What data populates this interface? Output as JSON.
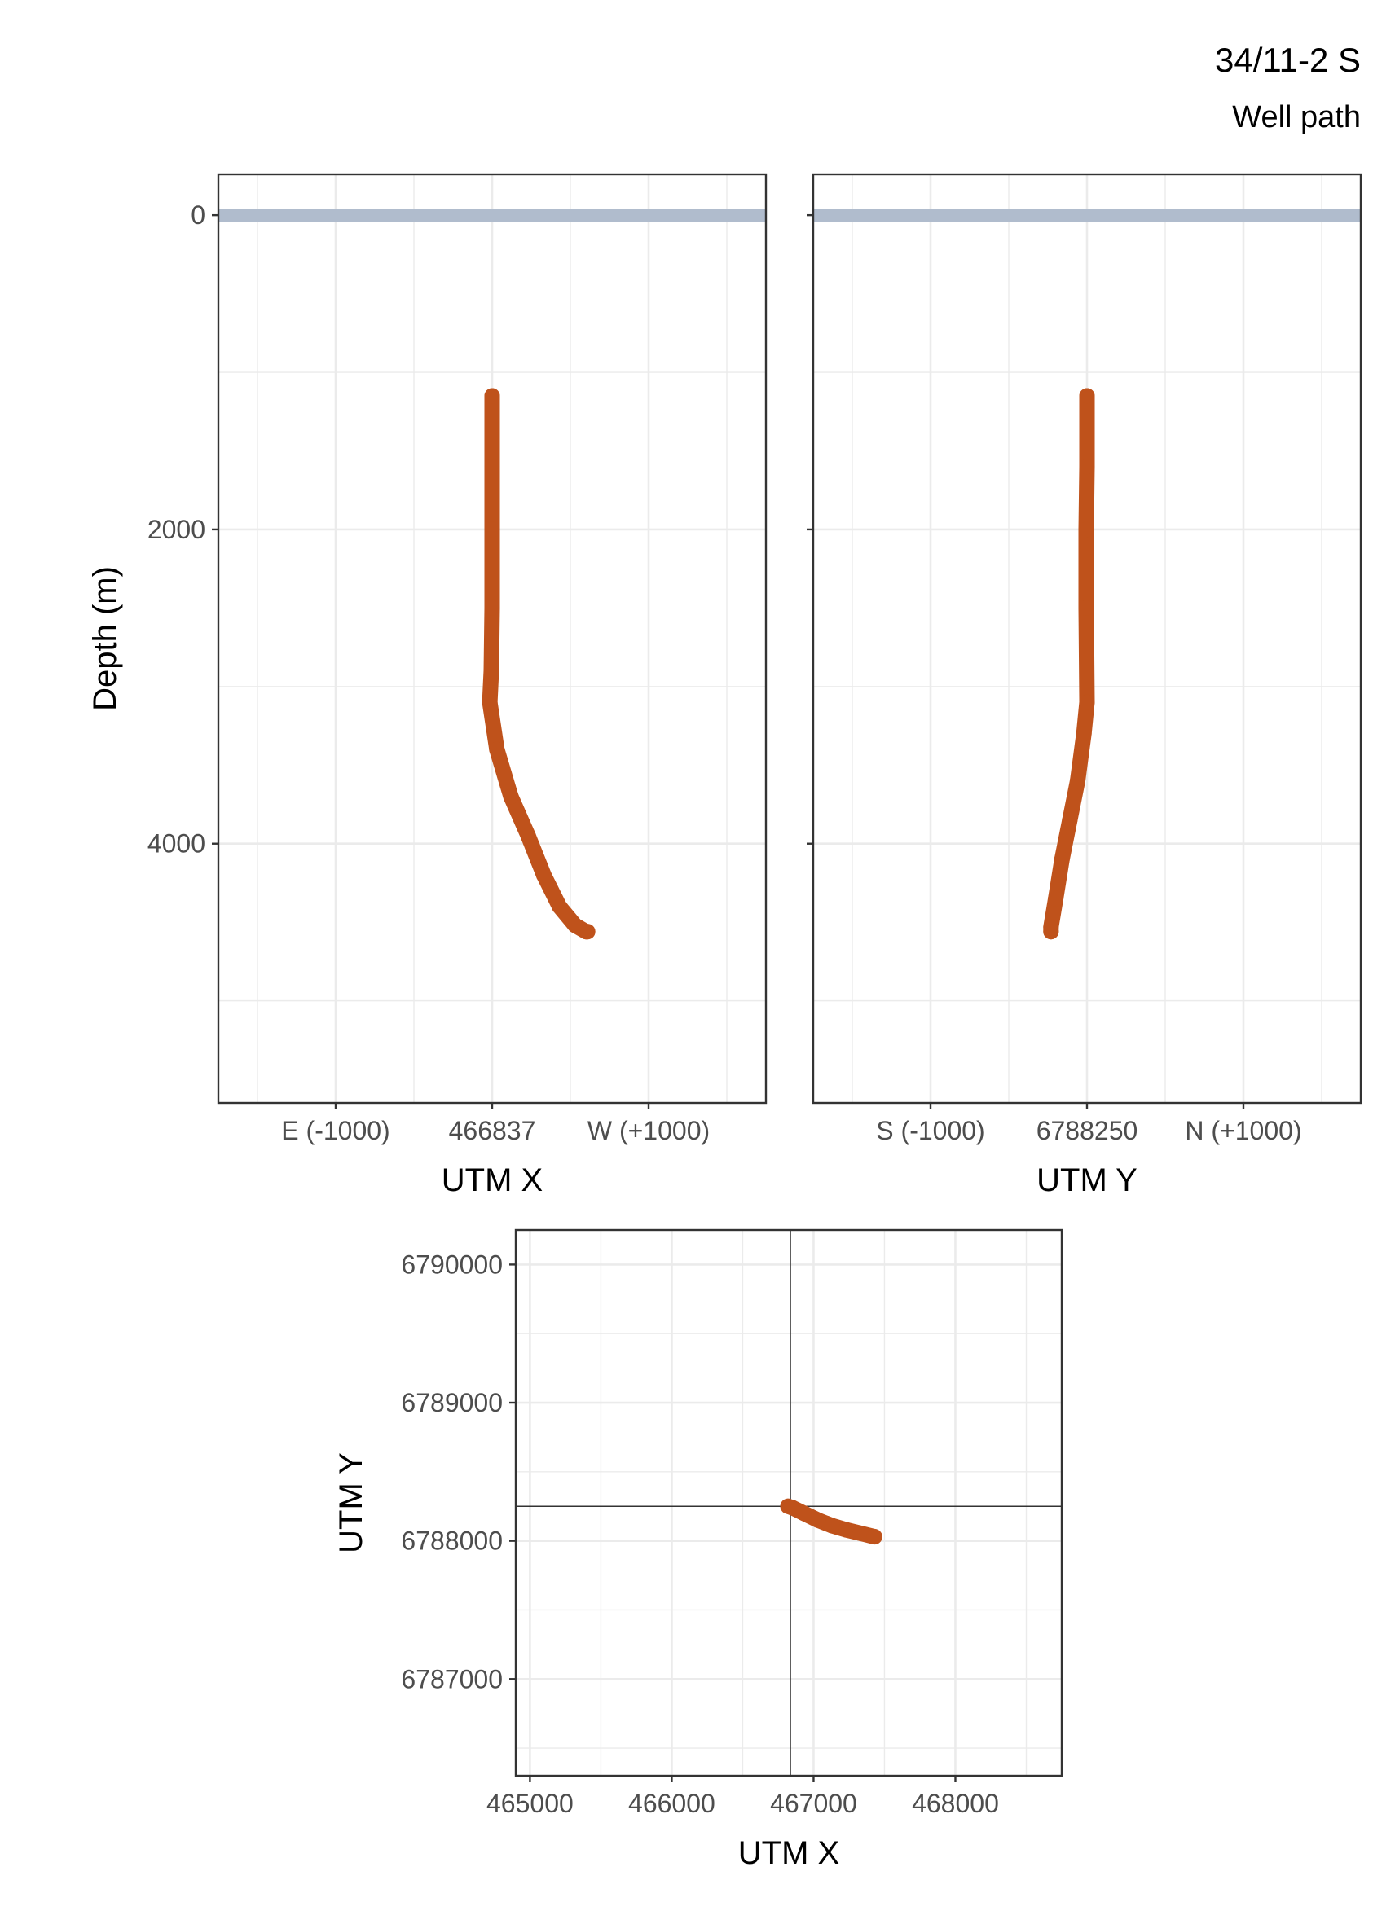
{
  "header": {
    "title": "34/11-2 S",
    "subtitle": "Well path"
  },
  "chart_data": [
    {
      "type": "line",
      "panel": "depth-vs-utm-x",
      "xlabel": "UTM X",
      "ylabel": "Depth (m)",
      "xlim": [
        -1750,
        1750
      ],
      "ylim": [
        5650,
        -260
      ],
      "x_ticks": [
        -1000,
        0,
        1000
      ],
      "x_tick_labels": [
        "E (-1000)",
        "466837",
        "W (+1000)"
      ],
      "y_ticks": [
        0,
        2000,
        4000
      ],
      "y_tick_labels": [
        "0",
        "2000",
        "4000"
      ],
      "grid": true,
      "seabed": {
        "depth": 0,
        "color": "#b0bccd"
      },
      "series": [
        {
          "color": "#bf521b",
          "x": [
            0,
            0,
            0,
            0,
            -5,
            -15,
            30,
            120,
            230,
            330,
            430,
            530,
            600,
            610
          ],
          "y": [
            1150,
            1600,
            2000,
            2500,
            2900,
            3100,
            3400,
            3700,
            3950,
            4200,
            4400,
            4520,
            4560,
            4560
          ]
        }
      ]
    },
    {
      "type": "line",
      "panel": "depth-vs-utm-y",
      "xlabel": "UTM Y",
      "ylabel": "",
      "xlim": [
        -1750,
        1750
      ],
      "ylim": [
        5650,
        -260
      ],
      "x_ticks": [
        -1000,
        0,
        1000
      ],
      "x_tick_labels": [
        "S (-1000)",
        "6788250",
        "N (+1000)"
      ],
      "y_ticks": [
        0,
        2000,
        4000
      ],
      "grid": true,
      "seabed": {
        "depth": 0,
        "color": "#b0bccd"
      },
      "series": [
        {
          "color": "#bf521b",
          "x": [
            0,
            0,
            -5,
            -5,
            0,
            -20,
            -60,
            -110,
            -160,
            -200,
            -230,
            -230
          ],
          "y": [
            1150,
            1600,
            2000,
            2500,
            3100,
            3300,
            3600,
            3850,
            4100,
            4350,
            4530,
            4560
          ]
        }
      ]
    },
    {
      "type": "line",
      "panel": "map-view",
      "xlabel": "UTM X",
      "ylabel": "UTM Y",
      "xlim": [
        464900,
        468750
      ],
      "ylim": [
        6786300,
        6790250
      ],
      "x_ticks": [
        465000,
        466000,
        467000,
        468000
      ],
      "x_tick_labels": [
        "465000",
        "466000",
        "467000",
        "468000"
      ],
      "y_ticks": [
        6787000,
        6788000,
        6789000,
        6790000
      ],
      "y_tick_labels": [
        "6787000",
        "6788000",
        "6789000",
        "6790000"
      ],
      "grid": true,
      "reference_lines": {
        "x": 466837,
        "y": 6788250
      },
      "series": [
        {
          "color": "#bf521b",
          "x": [
            466820,
            466850,
            466930,
            467030,
            467130,
            467230,
            467330,
            467430
          ],
          "y": [
            6788250,
            6788240,
            6788200,
            6788150,
            6788110,
            6788080,
            6788055,
            6788030
          ]
        }
      ]
    }
  ]
}
